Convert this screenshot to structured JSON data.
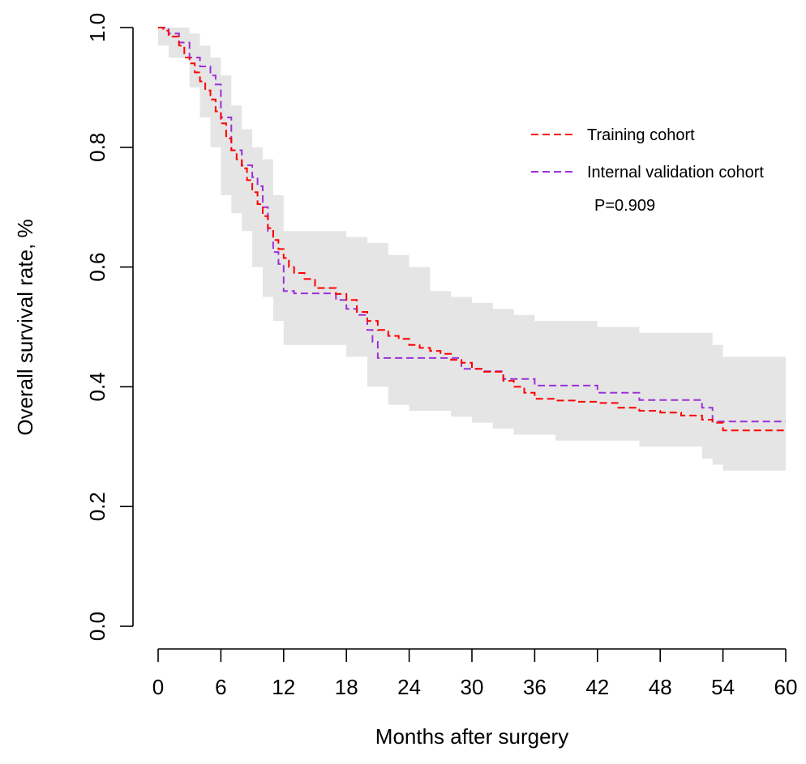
{
  "chart_data": {
    "type": "line",
    "title": "",
    "xlabel": "Months after surgery",
    "ylabel": "Overall survival rate, %",
    "xlim": [
      0,
      60
    ],
    "ylim": [
      0,
      1
    ],
    "x_ticks": [
      0,
      6,
      12,
      18,
      24,
      30,
      36,
      42,
      48,
      54,
      60
    ],
    "y_ticks": [
      {
        "value": 0.0,
        "label": "0.0"
      },
      {
        "value": 0.2,
        "label": "0.2"
      },
      {
        "value": 0.4,
        "label": "0.4"
      },
      {
        "value": 0.6,
        "label": "0.6"
      },
      {
        "value": 0.8,
        "label": "0.8"
      },
      {
        "value": 1.0,
        "label": "1.0"
      }
    ],
    "grid": false,
    "legend_position": "top-right",
    "annotation": "P=0.909",
    "confidence_band": {
      "color": "#e5e5e5",
      "x": [
        0,
        1,
        3,
        4,
        5,
        6,
        7,
        8,
        9,
        10,
        11,
        12,
        14,
        16,
        18,
        20,
        22,
        24,
        26,
        28,
        30,
        32,
        34,
        36,
        38,
        40,
        42,
        44,
        46,
        48,
        50,
        52,
        53,
        54,
        56,
        58,
        60
      ],
      "upper": [
        1.0,
        1.0,
        0.99,
        0.97,
        0.95,
        0.92,
        0.87,
        0.83,
        0.8,
        0.78,
        0.72,
        0.66,
        0.66,
        0.66,
        0.65,
        0.64,
        0.62,
        0.6,
        0.56,
        0.55,
        0.54,
        0.53,
        0.52,
        0.51,
        0.51,
        0.51,
        0.5,
        0.5,
        0.49,
        0.49,
        0.49,
        0.49,
        0.47,
        0.45,
        0.45,
        0.45,
        0.45
      ],
      "lower": [
        0.97,
        0.95,
        0.9,
        0.85,
        0.8,
        0.72,
        0.69,
        0.66,
        0.6,
        0.55,
        0.51,
        0.47,
        0.47,
        0.47,
        0.45,
        0.4,
        0.37,
        0.36,
        0.36,
        0.35,
        0.34,
        0.33,
        0.32,
        0.32,
        0.31,
        0.31,
        0.31,
        0.31,
        0.3,
        0.3,
        0.3,
        0.28,
        0.27,
        0.26,
        0.26,
        0.26,
        0.26
      ]
    },
    "series": [
      {
        "name": "Training cohort",
        "color": "#ff0000",
        "x": [
          0,
          0.5,
          1,
          2,
          2.5,
          3,
          3.5,
          4,
          4.5,
          5,
          5.5,
          6,
          6.5,
          7,
          7.5,
          8,
          8.5,
          9,
          9.5,
          10,
          10.5,
          11,
          11.5,
          12,
          12.5,
          13,
          14,
          15,
          17,
          18,
          19,
          20,
          21,
          22,
          23,
          24,
          25,
          26,
          27,
          28,
          29,
          30,
          31,
          33,
          34,
          35,
          36,
          38,
          40,
          42,
          44,
          46,
          48,
          50,
          52,
          53,
          54,
          60
        ],
        "y": [
          1.0,
          0.995,
          0.985,
          0.97,
          0.95,
          0.94,
          0.925,
          0.91,
          0.895,
          0.88,
          0.86,
          0.84,
          0.815,
          0.795,
          0.78,
          0.765,
          0.745,
          0.725,
          0.705,
          0.685,
          0.665,
          0.645,
          0.63,
          0.615,
          0.6,
          0.59,
          0.58,
          0.565,
          0.555,
          0.545,
          0.525,
          0.51,
          0.495,
          0.485,
          0.48,
          0.47,
          0.465,
          0.46,
          0.455,
          0.445,
          0.44,
          0.43,
          0.425,
          0.41,
          0.4,
          0.39,
          0.38,
          0.377,
          0.375,
          0.373,
          0.365,
          0.36,
          0.357,
          0.352,
          0.345,
          0.34,
          0.327,
          0.327
        ]
      },
      {
        "name": "Internal validation cohort",
        "color": "#9b30d9",
        "x": [
          0,
          1,
          2,
          3,
          4,
          5,
          5.5,
          6,
          7,
          8,
          9,
          9.5,
          10,
          10.5,
          11,
          11.5,
          12,
          13,
          14,
          16,
          17,
          18,
          19,
          20,
          20.5,
          21,
          24,
          28,
          29,
          31,
          33,
          34,
          36,
          38,
          40,
          42,
          44,
          46,
          48,
          50,
          52,
          53,
          54,
          60
        ],
        "y": [
          1.0,
          0.99,
          0.975,
          0.95,
          0.935,
          0.92,
          0.905,
          0.85,
          0.795,
          0.77,
          0.75,
          0.735,
          0.7,
          0.66,
          0.625,
          0.605,
          0.56,
          0.556,
          0.556,
          0.556,
          0.545,
          0.53,
          0.52,
          0.495,
          0.475,
          0.448,
          0.448,
          0.448,
          0.43,
          0.426,
          0.413,
          0.413,
          0.402,
          0.402,
          0.402,
          0.39,
          0.39,
          0.378,
          0.378,
          0.378,
          0.365,
          0.342,
          0.342,
          0.342
        ]
      }
    ]
  }
}
